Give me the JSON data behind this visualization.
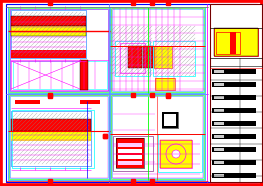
{
  "bg_color": "#ffffff",
  "M": "#ff00ff",
  "C": "#00ffff",
  "R": "#ff0000",
  "Y": "#ffff00",
  "G": "#00ff00",
  "B": "#0000ff",
  "K": "#000000",
  "GR": "#888888",
  "fig_width": 2.63,
  "fig_height": 1.86,
  "dpi": 100
}
